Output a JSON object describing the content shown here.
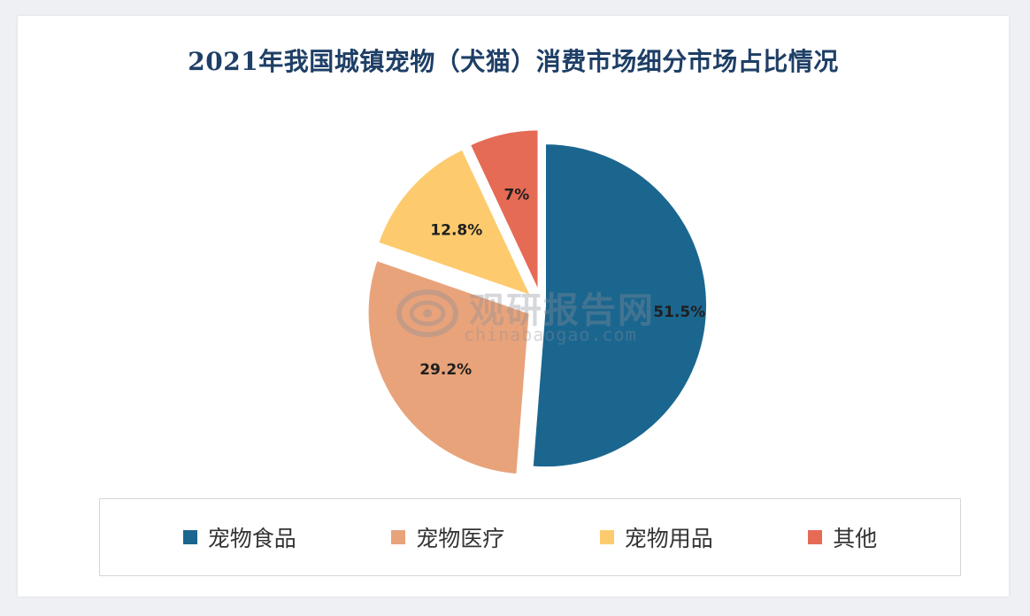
{
  "title": "2021年我国城镇宠物（犬猫）消费市场细分市场占比情况",
  "watermark": {
    "name": "观研报告网",
    "url": "chinabaogao.com"
  },
  "chart_data": {
    "type": "pie",
    "title": "2021年我国城镇宠物（犬猫）消费市场细分市场占比情况",
    "legend_position": "bottom",
    "slices": [
      {
        "name": "宠物食品",
        "value": 51.5,
        "label": "51.5%",
        "color": "#1b668f"
      },
      {
        "name": "宠物医疗",
        "value": 29.2,
        "label": "29.2%",
        "color": "#e8a37b"
      },
      {
        "name": "宠物用品",
        "value": 12.8,
        "label": "12.8%",
        "color": "#fdcb6e"
      },
      {
        "name": "其他",
        "value": 7,
        "label": "7%",
        "color": "#e56b55"
      }
    ]
  }
}
